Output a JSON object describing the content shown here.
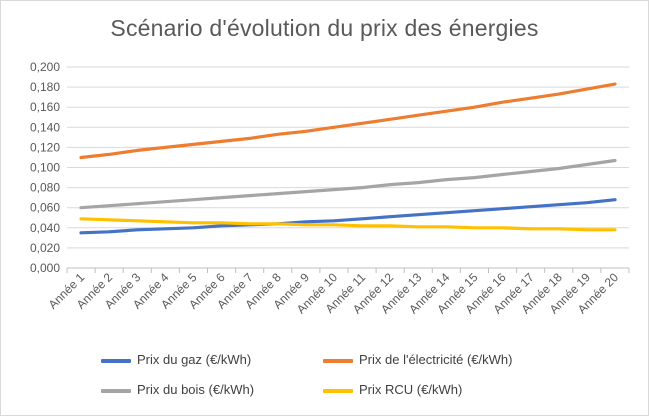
{
  "chart_data": {
    "type": "line",
    "title": "Scénario d'évolution du prix des énergies",
    "categories": [
      "Année 1",
      "Année 2",
      "Année 3",
      "Année 4",
      "Année 5",
      "Année 6",
      "Année 7",
      "Année 8",
      "Année 9",
      "Année 10",
      "Année 11",
      "Année 12",
      "Année 13",
      "Année 14",
      "Année 15",
      "Année 16",
      "Année 17",
      "Année 18",
      "Année 19",
      "Année 20"
    ],
    "yticks": [
      "0,000",
      "0,020",
      "0,040",
      "0,060",
      "0,080",
      "0,100",
      "0,120",
      "0,140",
      "0,160",
      "0,180",
      "0,200"
    ],
    "ylim": [
      0,
      0.2
    ],
    "grid": true,
    "legend_position": "bottom",
    "series": [
      {
        "name": "Prix du gaz (€/kWh)",
        "color": "#4472C4",
        "values": [
          0.035,
          0.036,
          0.038,
          0.039,
          0.04,
          0.042,
          0.043,
          0.044,
          0.046,
          0.047,
          0.049,
          0.051,
          0.053,
          0.055,
          0.057,
          0.059,
          0.061,
          0.063,
          0.065,
          0.068
        ]
      },
      {
        "name": "Prix de l'électricité (€/kWh)",
        "color": "#ED7D31",
        "values": [
          0.11,
          0.113,
          0.117,
          0.12,
          0.123,
          0.126,
          0.129,
          0.133,
          0.136,
          0.14,
          0.144,
          0.148,
          0.152,
          0.156,
          0.16,
          0.165,
          0.169,
          0.173,
          0.178,
          0.183
        ]
      },
      {
        "name": "Prix du bois (€/kWh)",
        "color": "#A5A5A5",
        "values": [
          0.06,
          0.062,
          0.064,
          0.066,
          0.068,
          0.07,
          0.072,
          0.074,
          0.076,
          0.078,
          0.08,
          0.083,
          0.085,
          0.088,
          0.09,
          0.093,
          0.096,
          0.099,
          0.103,
          0.107
        ]
      },
      {
        "name": "Prix RCU (€/kWh)",
        "color": "#FFC000",
        "values": [
          0.049,
          0.048,
          0.047,
          0.046,
          0.045,
          0.045,
          0.044,
          0.044,
          0.043,
          0.043,
          0.042,
          0.042,
          0.041,
          0.041,
          0.04,
          0.04,
          0.039,
          0.039,
          0.038,
          0.038
        ]
      }
    ]
  }
}
